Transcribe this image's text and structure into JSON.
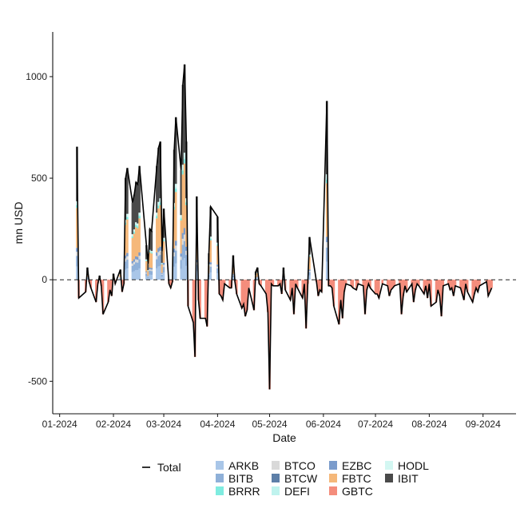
{
  "chart_data": {
    "type": "bar",
    "subtype": "stacked-bar-with-line",
    "xlabel": "Date",
    "ylabel": "mn USD",
    "x_ticks": [
      "01-2024",
      "02-2024",
      "03-2024",
      "04-2024",
      "05-2024",
      "06-2024",
      "07-2024",
      "08-2024",
      "09-2024"
    ],
    "y_ticks": [
      -500,
      0,
      500,
      1000
    ],
    "ylim": [
      -660,
      1220
    ],
    "xlim": [
      "2023-12-28",
      "2024-09-20"
    ],
    "grid": false,
    "zero_line": "dashed",
    "legend_position": "bottom",
    "legend": {
      "line_label": "Total",
      "items": [
        {
          "name": "ARKB",
          "color": "#a9c6e8"
        },
        {
          "name": "BTCO",
          "color": "#d9d9d9"
        },
        {
          "name": "EZBC",
          "color": "#7b9ccc"
        },
        {
          "name": "HODL",
          "color": "#d3f7f2"
        },
        {
          "name": "BITB",
          "color": "#8fb0d8"
        },
        {
          "name": "BTCW",
          "color": "#5d7fa8"
        },
        {
          "name": "FBTC",
          "color": "#f5b87a"
        },
        {
          "name": "IBIT",
          "color": "#4a4a4a"
        },
        {
          "name": "BRRR",
          "color": "#7fece0"
        },
        {
          "name": "DEFI",
          "color": "#bff3ee"
        },
        {
          "name": "GBTC",
          "color": "#f48d7c"
        }
      ]
    },
    "stack_order": [
      "GBTC",
      "ARKB",
      "BITB",
      "BTCO",
      "BTCW",
      "EZBC",
      "FBTC",
      "BRRR",
      "DEFI",
      "HODL",
      "IBIT"
    ],
    "dates": [
      "2024-01-11",
      "2024-01-12",
      "2024-01-16",
      "2024-01-17",
      "2024-01-18",
      "2024-01-19",
      "2024-01-22",
      "2024-01-23",
      "2024-01-24",
      "2024-01-25",
      "2024-01-26",
      "2024-01-29",
      "2024-01-30",
      "2024-01-31",
      "2024-02-01",
      "2024-02-02",
      "2024-02-05",
      "2024-02-06",
      "2024-02-07",
      "2024-02-08",
      "2024-02-09",
      "2024-02-12",
      "2024-02-13",
      "2024-02-14",
      "2024-02-15",
      "2024-02-16",
      "2024-02-20",
      "2024-02-21",
      "2024-02-22",
      "2024-02-23",
      "2024-02-26",
      "2024-02-27",
      "2024-02-28",
      "2024-02-29",
      "2024-03-01",
      "2024-03-04",
      "2024-03-05",
      "2024-03-06",
      "2024-03-07",
      "2024-03-08",
      "2024-03-11",
      "2024-03-12",
      "2024-03-13",
      "2024-03-14",
      "2024-03-15",
      "2024-03-18",
      "2024-03-19",
      "2024-03-20",
      "2024-03-21",
      "2024-03-22",
      "2024-03-25",
      "2024-03-26",
      "2024-03-27",
      "2024-03-28",
      "2024-04-01",
      "2024-04-02",
      "2024-04-03",
      "2024-04-04",
      "2024-04-05",
      "2024-04-08",
      "2024-04-09",
      "2024-04-10",
      "2024-04-11",
      "2024-04-12",
      "2024-04-15",
      "2024-04-16",
      "2024-04-17",
      "2024-04-18",
      "2024-04-19",
      "2024-04-22",
      "2024-04-23",
      "2024-04-24",
      "2024-04-25",
      "2024-04-26",
      "2024-04-29",
      "2024-04-30",
      "2024-05-01",
      "2024-05-02",
      "2024-05-03",
      "2024-05-06",
      "2024-05-07",
      "2024-05-08",
      "2024-05-09",
      "2024-05-10",
      "2024-05-13",
      "2024-05-14",
      "2024-05-15",
      "2024-05-16",
      "2024-05-17",
      "2024-05-20",
      "2024-05-21",
      "2024-05-22",
      "2024-05-23",
      "2024-05-24",
      "2024-05-28",
      "2024-05-29",
      "2024-05-30",
      "2024-05-31",
      "2024-06-03",
      "2024-06-04",
      "2024-06-05",
      "2024-06-06",
      "2024-06-07",
      "2024-06-10",
      "2024-06-11",
      "2024-06-12",
      "2024-06-13",
      "2024-06-14",
      "2024-06-17",
      "2024-06-18",
      "2024-06-20",
      "2024-06-21",
      "2024-06-24",
      "2024-06-25",
      "2024-06-26",
      "2024-06-27",
      "2024-06-28",
      "2024-07-01",
      "2024-07-02",
      "2024-07-03",
      "2024-07-05",
      "2024-07-08",
      "2024-07-09",
      "2024-07-10",
      "2024-07-11",
      "2024-07-12",
      "2024-07-15",
      "2024-07-16",
      "2024-07-17",
      "2024-07-18",
      "2024-07-19",
      "2024-07-22",
      "2024-07-23",
      "2024-07-24",
      "2024-07-25",
      "2024-07-26",
      "2024-07-29",
      "2024-07-30",
      "2024-07-31",
      "2024-08-01",
      "2024-08-02",
      "2024-08-05",
      "2024-08-06",
      "2024-08-07",
      "2024-08-08",
      "2024-08-09",
      "2024-08-12",
      "2024-08-13",
      "2024-08-14",
      "2024-08-15",
      "2024-08-16",
      "2024-08-19",
      "2024-08-20",
      "2024-08-21",
      "2024-08-22",
      "2024-08-23",
      "2024-08-26",
      "2024-08-27",
      "2024-08-28",
      "2024-08-29",
      "2024-08-30",
      "2024-09-03",
      "2024-09-04",
      "2024-09-05",
      "2024-09-06"
    ],
    "total": [
      655,
      -90,
      -60,
      60,
      -10,
      -40,
      -110,
      -20,
      20,
      -30,
      -170,
      -110,
      -50,
      -80,
      30,
      -20,
      50,
      -60,
      -20,
      500,
      550,
      380,
      420,
      480,
      470,
      560,
      170,
      80,
      250,
      240,
      560,
      650,
      680,
      140,
      350,
      -20,
      -40,
      -10,
      640,
      800,
      540,
      960,
      1060,
      680,
      -130,
      -210,
      -380,
      410,
      -100,
      -190,
      -190,
      -230,
      130,
      360,
      310,
      -70,
      -80,
      -100,
      -20,
      -40,
      -40,
      120,
      -10,
      -70,
      -140,
      -120,
      -180,
      -150,
      -40,
      -150,
      40,
      60,
      -20,
      -30,
      -70,
      -160,
      -540,
      -20,
      -30,
      -30,
      -20,
      -70,
      60,
      -50,
      -100,
      -40,
      -170,
      -20,
      -40,
      -90,
      -20,
      -240,
      -20,
      210,
      -10,
      -80,
      -50,
      -60,
      880,
      -30,
      -30,
      -40,
      -130,
      -220,
      -100,
      -190,
      -60,
      -20,
      -30,
      -40,
      -50,
      -20,
      -30,
      -170,
      -50,
      -20,
      -40,
      -70,
      -70,
      -90,
      -20,
      -30,
      -80,
      -50,
      -40,
      -30,
      -20,
      -170,
      -80,
      -30,
      -60,
      -20,
      -110,
      -50,
      -20,
      -30,
      -70,
      -30,
      -90,
      -20,
      -130,
      -110,
      -50,
      -80,
      -180,
      -30,
      -20,
      -50,
      -40,
      -80,
      -30,
      -40,
      -70,
      -100,
      -20,
      -60,
      -110,
      -70,
      -40,
      -60,
      -30,
      -10,
      -80,
      -60,
      -40,
      -20,
      -50
    ]
  }
}
